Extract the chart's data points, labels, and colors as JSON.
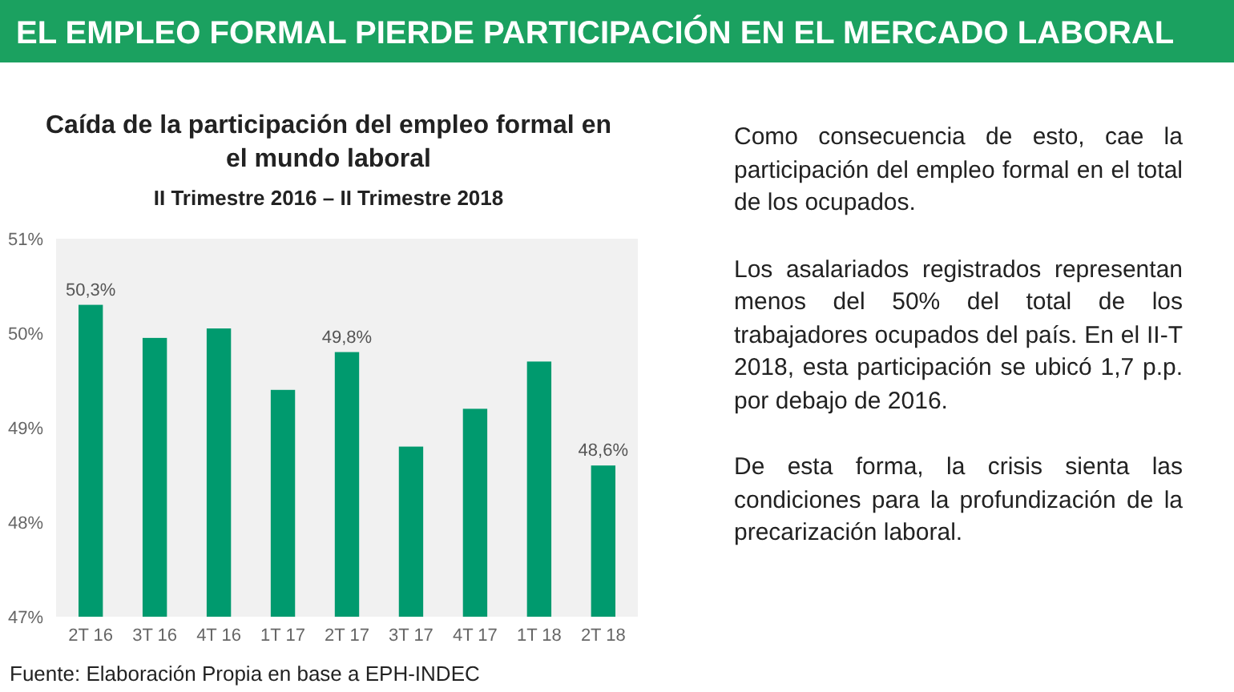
{
  "chart_data": {
    "type": "bar",
    "title": "EL EMPLEO FORMAL PIERDE PARTICIPACIÓN EN EL MERCADO LABORAL",
    "subtitle": "Caída de la participación del empleo formal en el mundo laboral",
    "categories": [
      "2T 16",
      "3T 16",
      "4T 16",
      "1T 17",
      "2T 17",
      "3T 17",
      "4T 17",
      "1T 18",
      "2T 18"
    ],
    "values": [
      50.3,
      49.95,
      50.05,
      49.4,
      49.8,
      48.8,
      49.2,
      49.7,
      48.6
    ],
    "value_labels": [
      "50,3%",
      null,
      null,
      null,
      "49,8%",
      null,
      null,
      null,
      "48,6%"
    ],
    "color": "#009a6e",
    "ylim": [
      47,
      51
    ],
    "yticks": [
      {
        "value": 47,
        "label": "47%"
      },
      {
        "value": 48,
        "label": "48%"
      },
      {
        "value": 49,
        "label": "49%"
      },
      {
        "value": 50,
        "label": "50%"
      },
      {
        "value": 51,
        "label": "51%"
      }
    ],
    "grid": false,
    "annotations": [
      "II Trimestre 2016 – II Trimestre 2018",
      "Como consecuencia de esto, cae la participación del empleo formal en el total de los ocupados.",
      "Los asalariados registrados representan menos del 50% del total de los trabajadores ocupados del país. En el II-T 2018, esta participación se ubicó 1,7 p.p. por debajo de 2016.",
      "De esta forma, la crisis sienta las condiciones para la profundización de la precarización laboral.",
      "Fuente: Elaboración Propia en base a EPH-INDEC"
    ]
  }
}
